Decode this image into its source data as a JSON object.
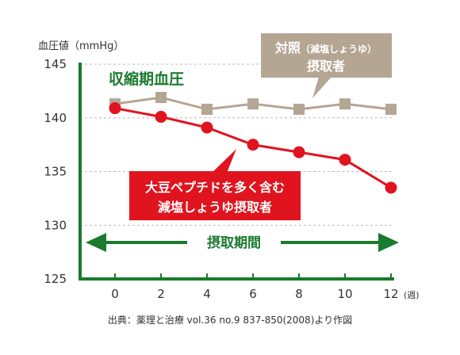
{
  "chart_data": {
    "type": "line",
    "ylabel": "血圧値（mmHg）",
    "title": "収縮期血圧",
    "x_unit": "(週)",
    "x": [
      0,
      2,
      4,
      6,
      8,
      10,
      12
    ],
    "x_ticks": [
      "0",
      "2",
      "4",
      "6",
      "8",
      "10",
      "12"
    ],
    "y_ticks": [
      "125",
      "130",
      "135",
      "140",
      "145"
    ],
    "ylim": [
      125,
      145
    ],
    "grid": "dashed horizontal",
    "series": [
      {
        "name": "対照（減塩しょうゆ）摂取者",
        "label_lines": [
          "対照",
          "（減塩しょうゆ）",
          "摂取者"
        ],
        "values": [
          141.3,
          141.9,
          140.8,
          141.3,
          140.8,
          141.3,
          140.8
        ],
        "color": "#b5a593",
        "marker": "square"
      },
      {
        "name": "大豆ペプチドを多く含む減塩しょうゆ摂取者",
        "label_lines": [
          "大豆ペプチドを多く含む",
          "減塩しょうゆ摂取者"
        ],
        "values": [
          140.9,
          140.1,
          139.1,
          137.5,
          136.8,
          136.1,
          133.5
        ],
        "color": "#e0141e",
        "marker": "circle"
      }
    ],
    "period_label": "摂取期間",
    "source": "出典：薬理と治療 vol.36 no.9 837-850(2008)より作図"
  },
  "colors": {
    "axis": "#1a7a2e",
    "control": "#b5a593",
    "treatment": "#e0141e",
    "grid": "#bbbbbb"
  }
}
